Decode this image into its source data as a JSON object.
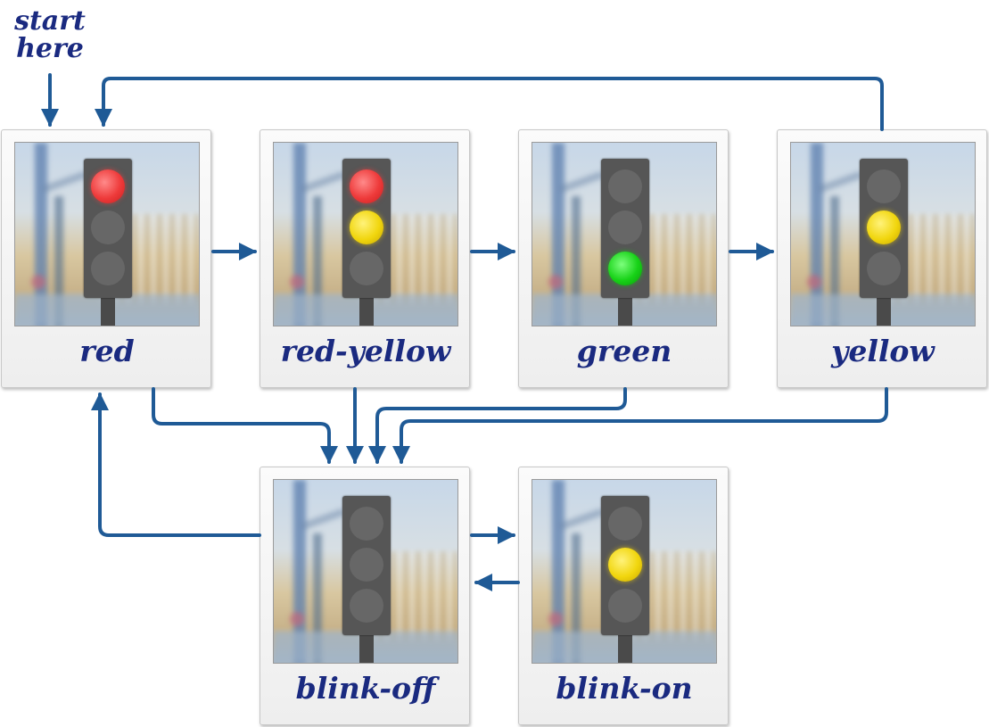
{
  "start": {
    "line1": "start",
    "line2": "here"
  },
  "states": [
    {
      "id": "red",
      "label": "red",
      "lamps": [
        "red",
        "off",
        "off"
      ]
    },
    {
      "id": "red-yellow",
      "label": "red-yellow",
      "lamps": [
        "red",
        "yellow",
        "off"
      ]
    },
    {
      "id": "green",
      "label": "green",
      "lamps": [
        "off",
        "off",
        "green"
      ]
    },
    {
      "id": "yellow",
      "label": "yellow",
      "lamps": [
        "off",
        "yellow",
        "off"
      ]
    },
    {
      "id": "blink-off",
      "label": "blink-off",
      "lamps": [
        "off",
        "off",
        "off"
      ]
    },
    {
      "id": "blink-on",
      "label": "blink-on",
      "lamps": [
        "off",
        "yellow",
        "off"
      ]
    }
  ],
  "transitions": [
    {
      "from": "start",
      "to": "red"
    },
    {
      "from": "red",
      "to": "red-yellow"
    },
    {
      "from": "red-yellow",
      "to": "green"
    },
    {
      "from": "green",
      "to": "yellow"
    },
    {
      "from": "yellow",
      "to": "red"
    },
    {
      "from": "red",
      "to": "blink-off"
    },
    {
      "from": "red-yellow",
      "to": "blink-off"
    },
    {
      "from": "green",
      "to": "blink-off"
    },
    {
      "from": "yellow",
      "to": "blink-off"
    },
    {
      "from": "blink-off",
      "to": "red"
    },
    {
      "from": "blink-off",
      "to": "blink-on"
    },
    {
      "from": "blink-on",
      "to": "blink-off"
    }
  ],
  "colors": {
    "arrow": "#1f5a96",
    "label": "#1a2a80",
    "housing": "#565656",
    "lamp_off": "#676767"
  }
}
